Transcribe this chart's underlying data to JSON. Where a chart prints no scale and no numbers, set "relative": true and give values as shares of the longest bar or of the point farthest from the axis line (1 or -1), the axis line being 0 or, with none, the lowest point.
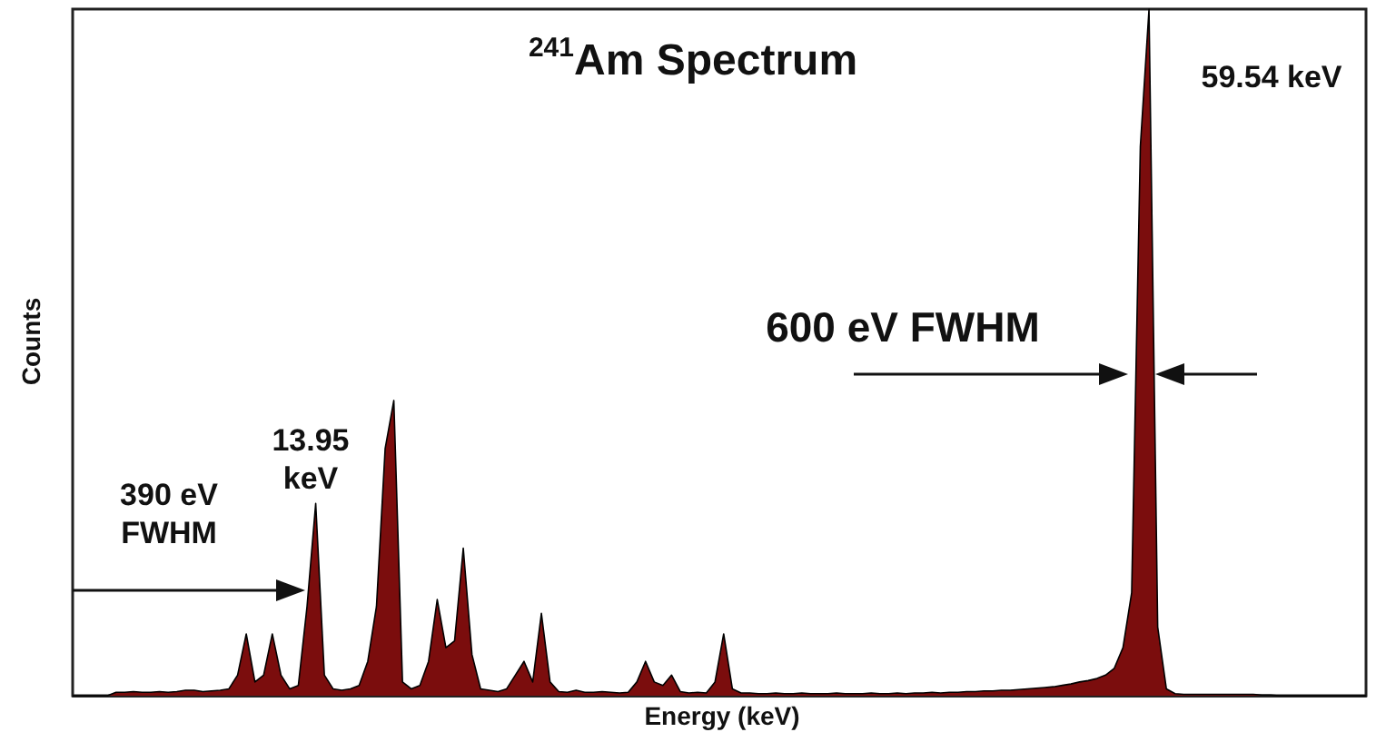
{
  "chart_data": {
    "type": "area",
    "title": "$^{241}$Am Spectrum",
    "xlabel": "Energy (keV)",
    "ylabel": "Counts",
    "relative": true,
    "annotations": [
      "59.54 keV",
      "600 eV FWHM",
      "13.95 keV",
      "390 eV FWHM"
    ],
    "categories": [
      null,
      null,
      null,
      null,
      null,
      null,
      null,
      null,
      null,
      null,
      null,
      null,
      null,
      null,
      null,
      null,
      null,
      null,
      null,
      null,
      null,
      null,
      null,
      null,
      null,
      null,
      null,
      null,
      null,
      null,
      null,
      null,
      null,
      null,
      null,
      null,
      null,
      null,
      null,
      null,
      null,
      null,
      null,
      null,
      null,
      null,
      null,
      null,
      null,
      null,
      null,
      null,
      null,
      null,
      null,
      null,
      null,
      null,
      null,
      null,
      null,
      null,
      null,
      null,
      null,
      null,
      null,
      null,
      null,
      null,
      null,
      null,
      null,
      null,
      null,
      null,
      null,
      null,
      null,
      null,
      null,
      null,
      null,
      null,
      null,
      null,
      null,
      null,
      null,
      null,
      null,
      null,
      null,
      null,
      null,
      null,
      null,
      null,
      null,
      null,
      null,
      null,
      null,
      null,
      null,
      null,
      null,
      null,
      null,
      null,
      null,
      null,
      null,
      null,
      null,
      null,
      null,
      null,
      null,
      null,
      null,
      null,
      null,
      null,
      null,
      null,
      null,
      null,
      null,
      null,
      null,
      null,
      null,
      null,
      null,
      null,
      null,
      null,
      null,
      null,
      null,
      null,
      null,
      null,
      null,
      null,
      null,
      null,
      null,
      null
    ],
    "series": [
      {
        "color": "#7b0d0d",
        "values": [
          0,
          0,
          0,
          0,
          0,
          0.005,
          0.005,
          0.006,
          0.005,
          0.005,
          0.006,
          0.005,
          0.006,
          0.008,
          0.008,
          0.006,
          0.007,
          0.008,
          0.01,
          0.03,
          0.09,
          0.02,
          0.03,
          0.09,
          0.03,
          0.01,
          0.015,
          0.13,
          0.28,
          0.03,
          0.01,
          0.008,
          0.01,
          0.015,
          0.05,
          0.13,
          0.36,
          0.43,
          0.02,
          0.01,
          0.015,
          0.05,
          0.14,
          0.07,
          0.08,
          0.215,
          0.06,
          0.01,
          0.008,
          0.006,
          0.01,
          0.03,
          0.05,
          0.02,
          0.12,
          0.02,
          0.006,
          0.005,
          0.008,
          0.005,
          0.005,
          0.006,
          0.005,
          0.004,
          0.005,
          0.02,
          0.05,
          0.02,
          0.015,
          0.03,
          0.006,
          0.004,
          0.005,
          0.004,
          0.02,
          0.09,
          0.01,
          0.004,
          0.004,
          0.003,
          0.003,
          0.004,
          0.003,
          0.003,
          0.004,
          0.003,
          0.003,
          0.003,
          0.004,
          0.003,
          0.003,
          0.003,
          0.004,
          0.003,
          0.003,
          0.004,
          0.003,
          0.004,
          0.004,
          0.005,
          0.004,
          0.005,
          0.005,
          0.006,
          0.006,
          0.007,
          0.007,
          0.008,
          0.008,
          0.009,
          0.01,
          0.011,
          0.012,
          0.013,
          0.015,
          0.017,
          0.02,
          0.022,
          0.025,
          0.03,
          0.04,
          0.07,
          0.15,
          0.8,
          1,
          0.1,
          0.01,
          0.003,
          0.002,
          0.002,
          0.002,
          0.002,
          0.002,
          0.002,
          0.002,
          0.002,
          0.002,
          0.001,
          0.001,
          0,
          0,
          0,
          0,
          0,
          0,
          0,
          0,
          0,
          0,
          0
        ]
      }
    ]
  }
}
